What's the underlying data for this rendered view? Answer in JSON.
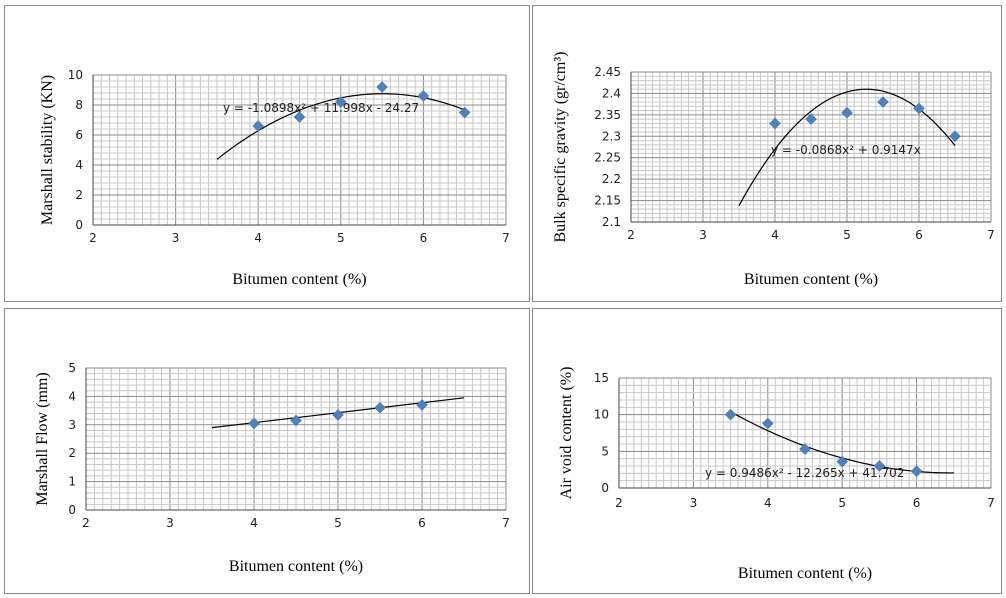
{
  "chart_data": [
    {
      "type": "scatter",
      "xlabel": "Bitumen content (%)",
      "ylabel": "Marshall stability (KN)",
      "xlim": [
        2,
        7
      ],
      "ylim": [
        0,
        10
      ],
      "xticks": [
        "2",
        "3",
        "4",
        "5",
        "6",
        "7"
      ],
      "yticks": [
        "0",
        "2",
        "4",
        "6",
        "8",
        "10"
      ],
      "series": [
        {
          "x": [
            4,
            4.5,
            5,
            5.5,
            6,
            6.5
          ],
          "y": [
            6.6,
            7.2,
            8.2,
            9.2,
            8.6,
            7.5
          ]
        }
      ],
      "trendline": {
        "type": "polynomial",
        "coefficients": [
          -1.0898,
          11.998,
          -24.27
        ],
        "x_range": [
          3.5,
          6.5
        ]
      },
      "equation": "y = -1.0898x² + 11.998x - 24.27"
    },
    {
      "type": "scatter",
      "xlabel": "Bitumen content (%)",
      "ylabel": "Bulk specific gravity (gr/cm³)",
      "xlim": [
        2,
        7
      ],
      "ylim": [
        2.1,
        2.45
      ],
      "xticks": [
        "2",
        "3",
        "4",
        "5",
        "6",
        "7"
      ],
      "yticks": [
        "2.1",
        "2.15",
        "2.2",
        "2.25",
        "2.3",
        "2.35",
        "2.4",
        "2.45"
      ],
      "series": [
        {
          "x": [
            4,
            4.5,
            5,
            5.5,
            6,
            6.5
          ],
          "y": [
            2.33,
            2.34,
            2.355,
            2.38,
            2.365,
            2.3
          ]
        }
      ],
      "trendline": {
        "type": "polynomial",
        "coefficients": [
          -0.0868,
          0.9147,
          0
        ],
        "x_range": [
          3.5,
          6.5
        ]
      },
      "equation": "y = -0.0868x² + 0.9147x"
    },
    {
      "type": "scatter",
      "xlabel": "Bitumen content (%)",
      "ylabel": "Marshall Flow (mm)",
      "xlim": [
        2,
        7
      ],
      "ylim": [
        0,
        5
      ],
      "xticks": [
        "2",
        "3",
        "4",
        "5",
        "6",
        "7"
      ],
      "yticks": [
        "0",
        "1",
        "2",
        "3",
        "4",
        "5"
      ],
      "series": [
        {
          "x": [
            4,
            4.5,
            5,
            5.5,
            6
          ],
          "y": [
            3.05,
            3.15,
            3.35,
            3.6,
            3.7
          ]
        }
      ],
      "trendline": {
        "type": "linear",
        "points": [
          [
            3.5,
            2.9
          ],
          [
            6.5,
            3.95
          ]
        ]
      },
      "equation": ""
    },
    {
      "type": "scatter",
      "xlabel": "Bitumen content (%)",
      "ylabel": "Air void content (%)",
      "xlim": [
        2,
        7
      ],
      "ylim": [
        0,
        15
      ],
      "xticks": [
        "2",
        "3",
        "4",
        "5",
        "6",
        "7"
      ],
      "yticks": [
        "0",
        "5",
        "10",
        "15"
      ],
      "series": [
        {
          "x": [
            3.5,
            4,
            4.5,
            5,
            5.5,
            6
          ],
          "y": [
            10,
            8.8,
            5.3,
            3.6,
            3.0,
            2.3
          ]
        }
      ],
      "trendline": {
        "type": "polynomial",
        "coefficients": [
          0.9486,
          -12.265,
          41.702
        ],
        "x_range": [
          3.5,
          6.5
        ]
      },
      "equation": "y = 0.9486x² - 12.265x + 41.702"
    }
  ]
}
